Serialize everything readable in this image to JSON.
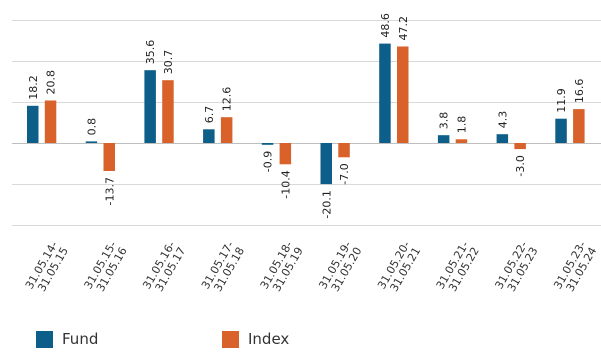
{
  "chart_data": {
    "type": "bar",
    "categories": [
      "31.05.14-\n31.05.15",
      "31.05.15-\n31.05.16",
      "31.05.16-\n31.05.17",
      "31.05.17-\n31.05.18",
      "31.05.18-\n31.05.19",
      "31.05.19-\n31.05.20",
      "31.05.20-\n31.05.21",
      "31.05.21-\n31.05.22",
      "31.05.22-\n31.05.23",
      "31.05.23-\n31.05.24"
    ],
    "series": [
      {
        "name": "Fund",
        "color": "#0d5f8a",
        "values": [
          18.2,
          0.8,
          35.6,
          6.7,
          -0.9,
          -20.1,
          48.6,
          3.8,
          4.3,
          11.9
        ]
      },
      {
        "name": "Index",
        "color": "#d9622b",
        "values": [
          20.8,
          -13.7,
          30.7,
          12.6,
          -10.4,
          -7.0,
          47.2,
          1.8,
          -3.0,
          16.6
        ]
      }
    ],
    "ylim": [
      -40,
      60
    ],
    "gridlines": [
      -40,
      -20,
      0,
      20,
      40,
      60
    ],
    "grid": true,
    "legend_position": "bottom-left",
    "grid_color": "#d9d9d9",
    "zero_line_color": "#bfbfbf",
    "title": "",
    "xlabel": "",
    "ylabel": ""
  }
}
